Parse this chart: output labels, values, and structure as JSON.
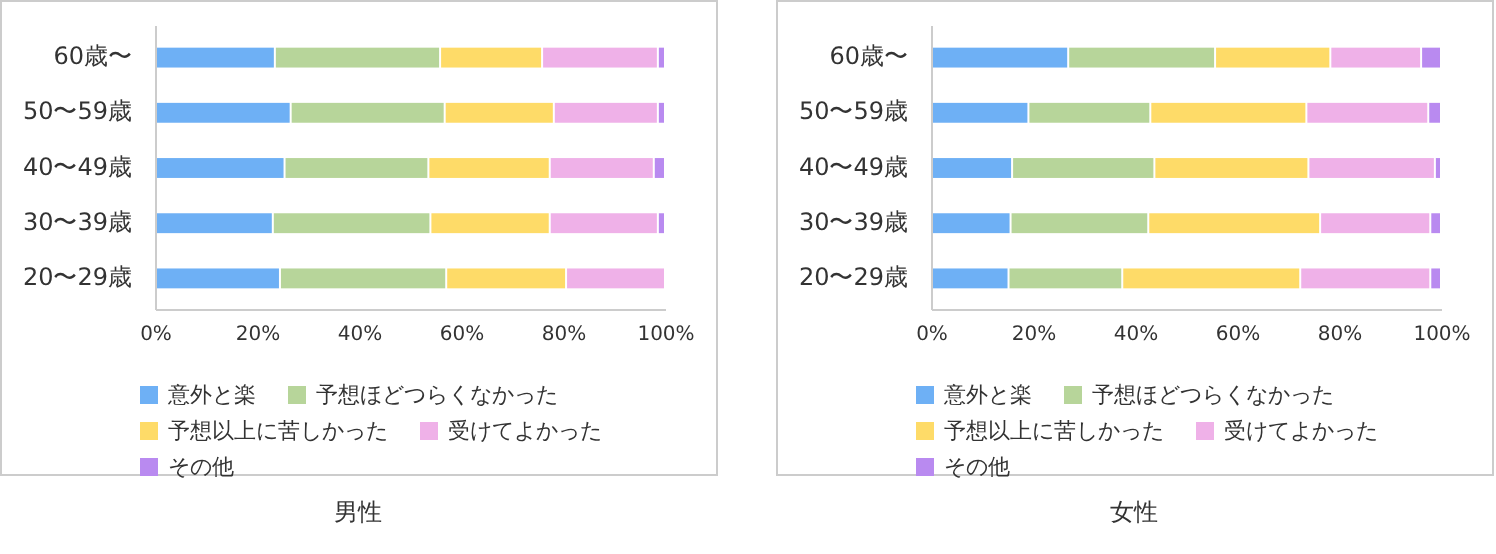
{
  "chart_data": [
    {
      "type": "bar",
      "title": "男性",
      "orientation": "horizontal",
      "stacked": true,
      "legend": "bottom",
      "grid": false,
      "categories": [
        "60歳〜",
        "50〜59歳",
        "40〜49歳",
        "30〜39歳",
        "20〜29歳"
      ],
      "xlim": [
        0,
        100
      ],
      "xticks": [
        {
          "value": 0,
          "label": "0%"
        },
        {
          "value": 20,
          "label": "20%"
        },
        {
          "value": 40,
          "label": "40%"
        },
        {
          "value": 60,
          "label": "60%"
        },
        {
          "value": 80,
          "label": "80%"
        },
        {
          "value": 100,
          "label": "100%"
        }
      ],
      "series": [
        {
          "name": "意外と楽",
          "color": "#6eb0f5",
          "values": [
            23.5,
            26.6,
            25.4,
            23.1,
            24.5
          ]
        },
        {
          "name": "予想ほどつらくなかった",
          "color": "#b7d59a",
          "values": [
            32.4,
            30.2,
            28.2,
            30.9,
            32.6
          ]
        },
        {
          "name": "予想以上に苦しかった",
          "color": "#fedb68",
          "values": [
            20,
            21.4,
            23.8,
            23.4,
            23.5
          ]
        },
        {
          "name": "受けてよかった",
          "color": "#efb1e8",
          "values": [
            22.7,
            20.4,
            20.4,
            21.2,
            19.4
          ]
        },
        {
          "name": "その他",
          "color": "#b98af0",
          "values": [
            1.4,
            1.4,
            2.2,
            1.4,
            0
          ]
        }
      ]
    },
    {
      "type": "bar",
      "title": "女性",
      "orientation": "horizontal",
      "stacked": true,
      "legend": "bottom",
      "grid": false,
      "categories": [
        "60歳〜",
        "50〜59歳",
        "40〜49歳",
        "30〜39歳",
        "20〜29歳"
      ],
      "xlim": [
        0,
        100
      ],
      "xticks": [
        {
          "value": 0,
          "label": "0%"
        },
        {
          "value": 20,
          "label": "20%"
        },
        {
          "value": 40,
          "label": "40%"
        },
        {
          "value": 60,
          "label": "60%"
        },
        {
          "value": 80,
          "label": "80%"
        },
        {
          "value": 100,
          "label": "100%"
        }
      ],
      "series": [
        {
          "name": "意外と楽",
          "color": "#6eb0f5",
          "values": [
            26.9,
            19.1,
            15.9,
            15.6,
            15.2
          ]
        },
        {
          "name": "予想ほどつらくなかった",
          "color": "#b7d59a",
          "values": [
            28.8,
            23.9,
            27.9,
            27,
            22.3
          ]
        },
        {
          "name": "予想以上に苦しかった",
          "color": "#fedb68",
          "values": [
            22.6,
            30.6,
            30.2,
            33.7,
            34.9
          ]
        },
        {
          "name": "受けてよかった",
          "color": "#efb1e8",
          "values": [
            17.8,
            23.9,
            24.8,
            21.6,
            25.5
          ]
        },
        {
          "name": "その他",
          "color": "#b98af0",
          "values": [
            3.9,
            2.5,
            1.2,
            2.1,
            2.1
          ]
        }
      ]
    }
  ]
}
